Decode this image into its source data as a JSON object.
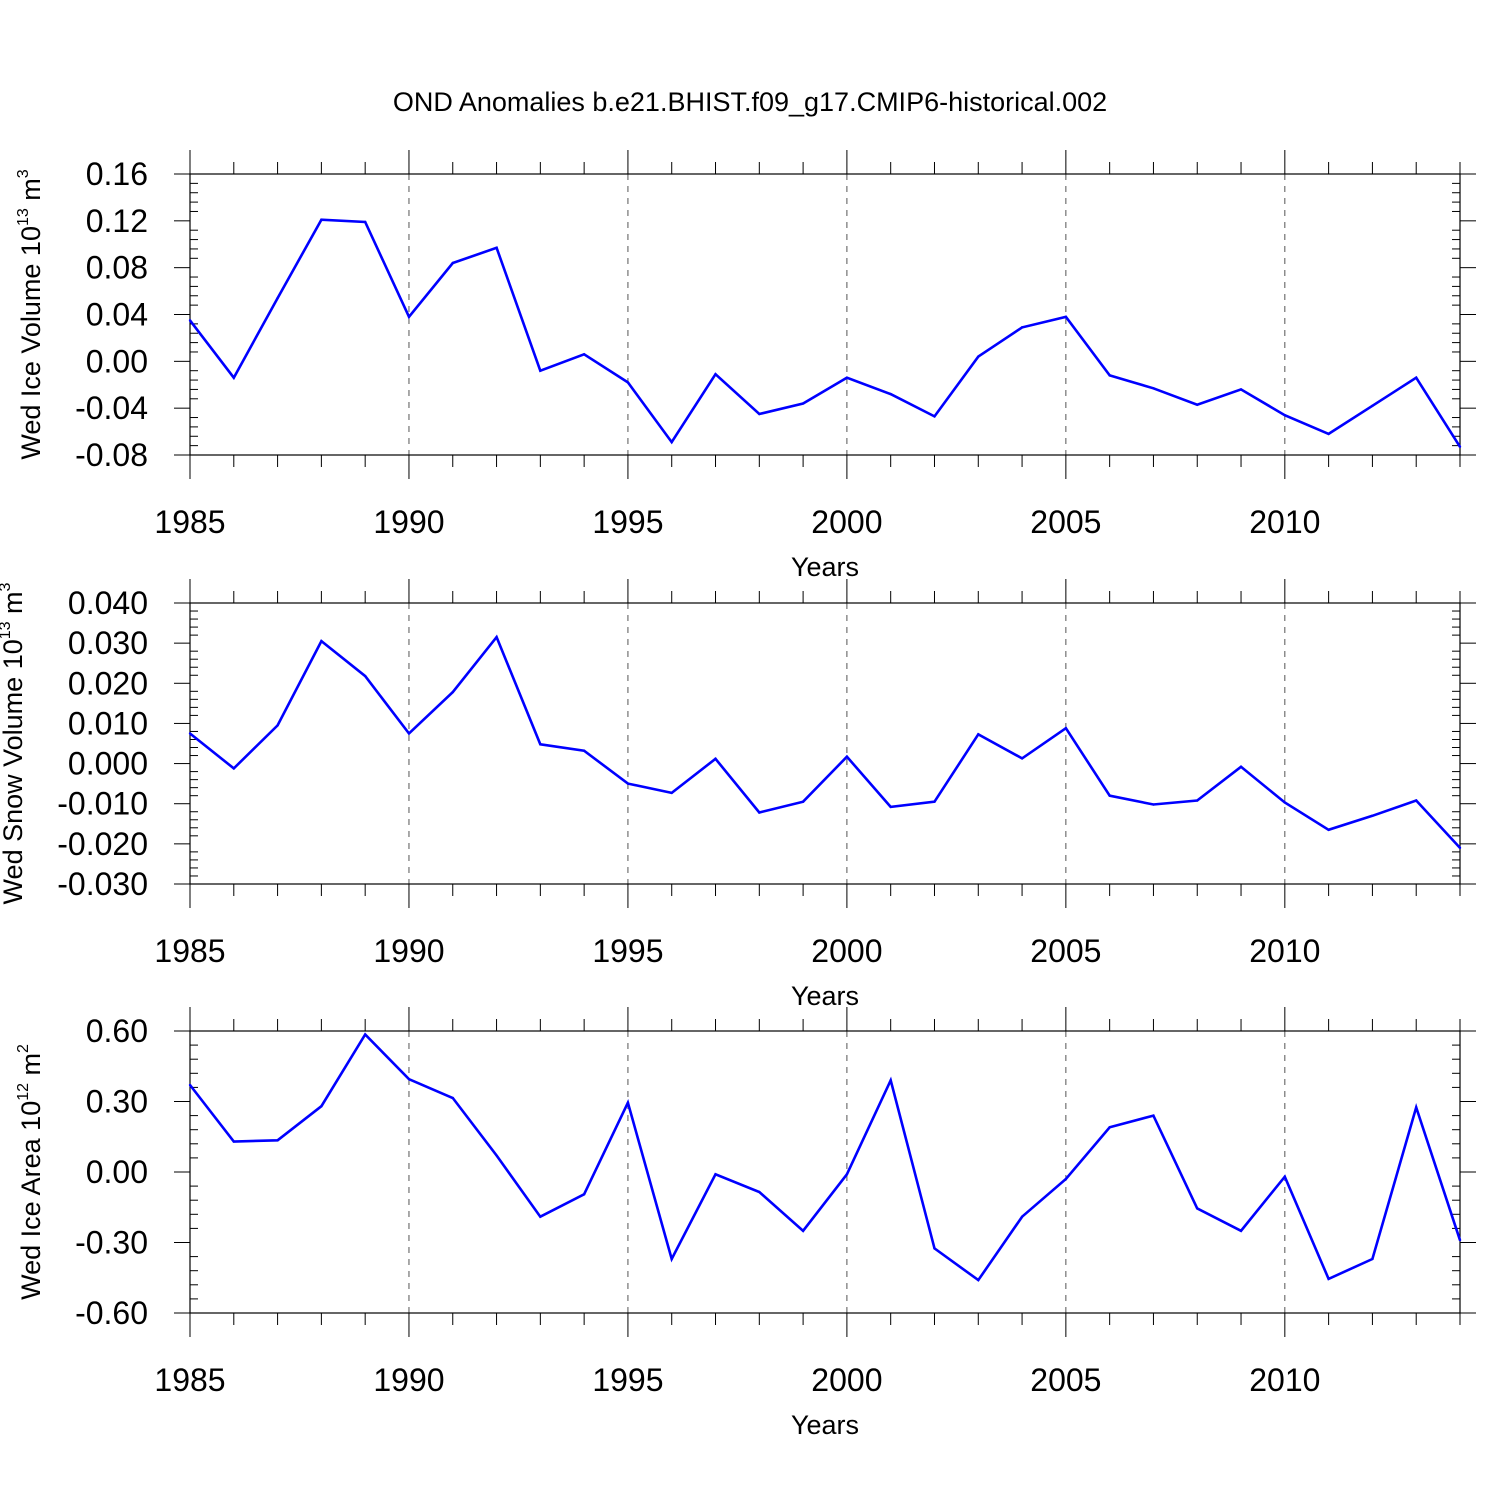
{
  "title": "OND Anomalies b.e21.BHIST.f09_g17.CMIP6-historical.002",
  "chart_data": [
    {
      "type": "line",
      "ylabel": "Wed Ice Volume 10",
      "ylabel_exp": "13",
      "ylabel_unit": "m",
      "ylabel_unit_exp": "3",
      "xlabel": "Years",
      "xlim": [
        1985,
        2014
      ],
      "ylim": [
        -0.08,
        0.16
      ],
      "yticks": [
        0.16,
        0.12,
        0.08,
        0.04,
        0.0,
        -0.04,
        -0.08
      ],
      "ytick_labels": [
        "0.16",
        "0.12",
        "0.08",
        "0.04",
        "0.00",
        "-0.04",
        "-0.08"
      ],
      "xticks": [
        1985,
        1990,
        1995,
        2000,
        2005,
        2010
      ],
      "xtick_labels": [
        "1985",
        "1990",
        "1995",
        "2000",
        "2005",
        "2010"
      ],
      "color": "#0000ff",
      "x": [
        1985,
        1986,
        1987,
        1988,
        1989,
        1990,
        1991,
        1992,
        1993,
        1994,
        1995,
        1996,
        1997,
        1998,
        1999,
        2000,
        2001,
        2002,
        2003,
        2004,
        2005,
        2006,
        2007,
        2008,
        2009,
        2010,
        2011,
        2012,
        2013,
        2014
      ],
      "values": [
        0.035,
        -0.014,
        0.054,
        0.121,
        0.119,
        0.038,
        0.084,
        0.097,
        -0.008,
        0.006,
        -0.018,
        -0.069,
        -0.011,
        -0.045,
        -0.036,
        -0.014,
        -0.028,
        -0.047,
        0.004,
        0.029,
        0.038,
        -0.012,
        -0.023,
        -0.037,
        -0.024,
        -0.046,
        -0.062,
        -0.038,
        -0.014,
        -0.073
      ]
    },
    {
      "type": "line",
      "ylabel": "Wed Snow Volume 10",
      "ylabel_exp": "13",
      "ylabel_unit": "m",
      "ylabel_unit_exp": "3",
      "xlabel": "Years",
      "xlim": [
        1985,
        2014
      ],
      "ylim": [
        -0.03,
        0.04
      ],
      "yticks": [
        0.04,
        0.03,
        0.02,
        0.01,
        0.0,
        -0.01,
        -0.02,
        -0.03
      ],
      "ytick_labels": [
        "0.040",
        "0.030",
        "0.020",
        "0.010",
        "0.000",
        "-0.010",
        "-0.020",
        "-0.030"
      ],
      "xticks": [
        1985,
        1990,
        1995,
        2000,
        2005,
        2010
      ],
      "xtick_labels": [
        "1985",
        "1990",
        "1995",
        "2000",
        "2005",
        "2010"
      ],
      "color": "#0000ff",
      "x": [
        1985,
        1986,
        1987,
        1988,
        1989,
        1990,
        1991,
        1992,
        1993,
        1994,
        1995,
        1996,
        1997,
        1998,
        1999,
        2000,
        2001,
        2002,
        2003,
        2004,
        2005,
        2006,
        2007,
        2008,
        2009,
        2010,
        2011,
        2012,
        2013,
        2014
      ],
      "values": [
        0.0075,
        -0.0012,
        0.0095,
        0.0305,
        0.0218,
        0.0075,
        0.0178,
        0.0315,
        0.0048,
        0.0032,
        -0.005,
        -0.0073,
        0.0012,
        -0.0122,
        -0.0095,
        0.0017,
        -0.0108,
        -0.0095,
        0.0073,
        0.0013,
        0.0088,
        -0.008,
        -0.0102,
        -0.0092,
        -0.0008,
        -0.0097,
        -0.0165,
        -0.013,
        -0.0092,
        -0.021
      ]
    },
    {
      "type": "line",
      "ylabel": "Wed Ice Area 10",
      "ylabel_exp": "12",
      "ylabel_unit": "m",
      "ylabel_unit_exp": "2",
      "xlabel": "Years",
      "xlim": [
        1985,
        2014
      ],
      "ylim": [
        -0.6,
        0.6
      ],
      "yticks": [
        0.6,
        0.3,
        0.0,
        -0.3,
        -0.6
      ],
      "ytick_labels": [
        "0.60",
        "0.30",
        "0.00",
        "-0.30",
        "-0.60"
      ],
      "xticks": [
        1985,
        1990,
        1995,
        2000,
        2005,
        2010
      ],
      "xtick_labels": [
        "1985",
        "1990",
        "1995",
        "2000",
        "2005",
        "2010"
      ],
      "color": "#0000ff",
      "x": [
        1985,
        1986,
        1987,
        1988,
        1989,
        1990,
        1991,
        1992,
        1993,
        1994,
        1995,
        1996,
        1997,
        1998,
        1999,
        2000,
        2001,
        2002,
        2003,
        2004,
        2005,
        2006,
        2007,
        2008,
        2009,
        2010,
        2011,
        2012,
        2013,
        2014
      ],
      "values": [
        0.37,
        0.13,
        0.135,
        0.28,
        0.585,
        0.395,
        0.315,
        0.07,
        -0.19,
        -0.095,
        0.295,
        -0.37,
        -0.01,
        -0.085,
        -0.25,
        -0.01,
        0.39,
        -0.325,
        -0.46,
        -0.19,
        -0.03,
        0.19,
        0.24,
        -0.155,
        -0.25,
        -0.02,
        -0.455,
        -0.37,
        0.275,
        -0.29
      ]
    }
  ]
}
